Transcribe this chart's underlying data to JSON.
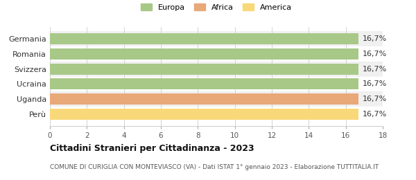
{
  "categories": [
    "Germania",
    "Romania",
    "Svizzera",
    "Ucraina",
    "Uganda",
    "Perù"
  ],
  "values": [
    16.7,
    16.7,
    16.7,
    16.7,
    16.7,
    16.7
  ],
  "bar_colors": [
    "#a8c888",
    "#a8c888",
    "#a8c888",
    "#a8c888",
    "#e8a878",
    "#f8d878"
  ],
  "bar_labels": [
    "16,7%",
    "16,7%",
    "16,7%",
    "16,7%",
    "16,7%",
    "16,7%"
  ],
  "legend_labels": [
    "Europa",
    "Africa",
    "America"
  ],
  "legend_colors": [
    "#a8c888",
    "#e8a878",
    "#f8d878"
  ],
  "xlim": [
    0,
    18
  ],
  "xticks": [
    0,
    2,
    4,
    6,
    8,
    10,
    12,
    14,
    16,
    18
  ],
  "title": "Cittadini Stranieri per Cittadinanza - 2023",
  "subtitle": "COMUNE DI CURIGLIA CON MONTEVIASCO (VA) - Dati ISTAT 1° gennaio 2023 - Elaborazione TUTTITALIA.IT",
  "title_fontsize": 9,
  "subtitle_fontsize": 6.5,
  "label_fontsize": 8,
  "tick_fontsize": 7.5,
  "legend_fontsize": 8,
  "background_color": "#ffffff",
  "row_colors": [
    "#f0f0f0",
    "#ffffff"
  ]
}
